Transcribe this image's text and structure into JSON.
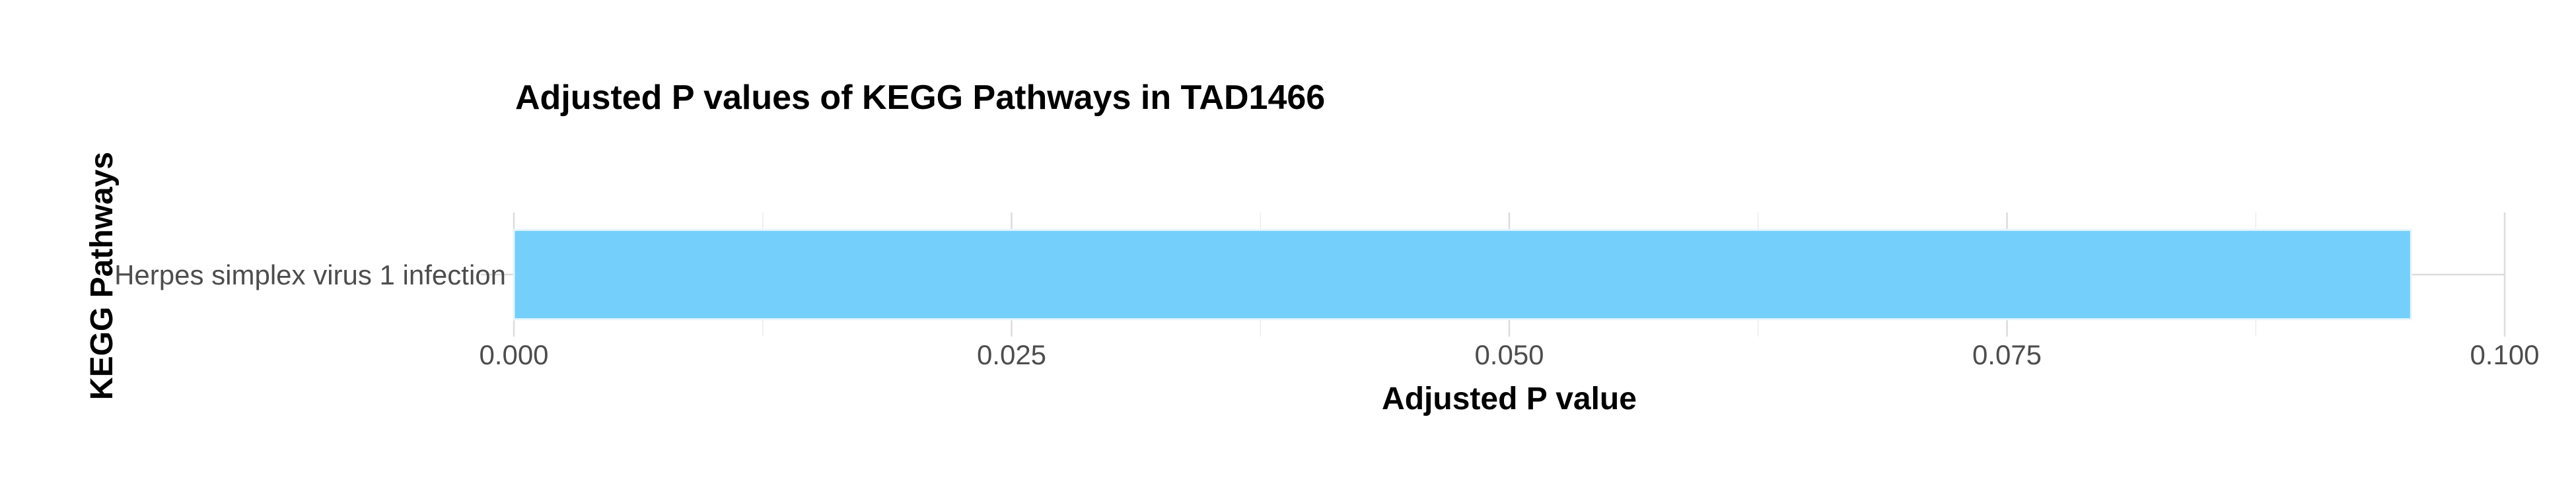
{
  "chart_data": {
    "type": "bar",
    "orientation": "horizontal",
    "title": "Adjusted P values of KEGG Pathways in TAD1466",
    "xlabel": "Adjusted P value",
    "ylabel": "KEGG Pathways",
    "categories": [
      "Herpes simplex virus 1 infection"
    ],
    "values": [
      0.0953
    ],
    "xlim": [
      0,
      0.1
    ],
    "xticks": [
      0,
      0.025,
      0.05,
      0.075,
      0.1
    ],
    "xtick_labels": [
      "0.000",
      "0.025",
      "0.050",
      "0.075",
      "0.100"
    ],
    "bar_color": "#75CFFB",
    "grid": true,
    "legend": "none"
  }
}
